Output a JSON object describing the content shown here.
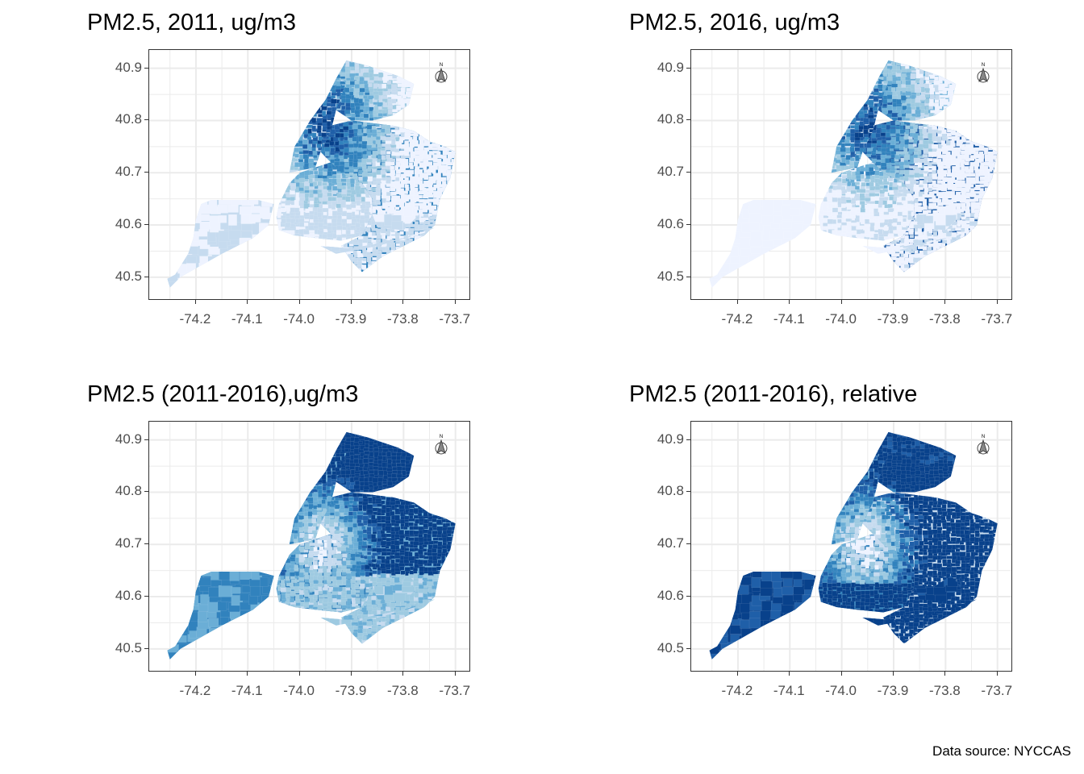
{
  "caption": "Data source: NYCCAS",
  "axes": {
    "y_ticks": [
      "40.9",
      "40.8",
      "40.7",
      "40.6",
      "40.5"
    ],
    "x_ticks": [
      "-74.2",
      "-74.1",
      "-74.0",
      "-73.9",
      "-73.8",
      "-73.7"
    ],
    "y_range": [
      40.455,
      40.935
    ],
    "x_range": [
      -74.29,
      -73.67
    ]
  },
  "north_arrow": {
    "label": "N"
  },
  "palette": {
    "c1": "#eef3ff",
    "c2": "#c6dbef",
    "c3": "#9ecae1",
    "c4": "#6baed6",
    "c5": "#3182bd",
    "c6": "#1f5fa8",
    "c7": "#08418b"
  },
  "panels": [
    {
      "title": "PM2.5, 2011, ug/m3",
      "scheme": "abs2011"
    },
    {
      "title": "PM2.5, 2016, ug/m3",
      "scheme": "abs2016"
    },
    {
      "title": "PM2.5 (2011-2016),ug/m3",
      "scheme": "diff"
    },
    {
      "title": "PM2.5 (2011-2016), relative",
      "scheme": "rel"
    }
  ]
}
